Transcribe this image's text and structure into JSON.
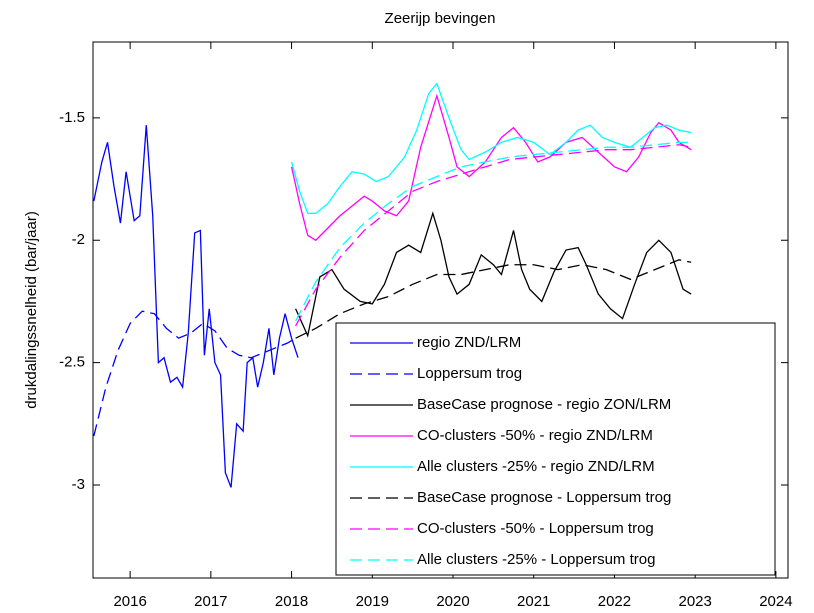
{
  "chart_data": {
    "type": "line",
    "title": "Zeerijp bevingen",
    "y_label": "drukdalingssnelheid (bar/jaar)",
    "xlim": [
      2015.54,
      2024.15
    ],
    "xticks": [
      2016,
      2017,
      2018,
      2019,
      2020,
      2021,
      2022,
      2023,
      2024
    ],
    "ylim": [
      -3.38,
      -1.19
    ],
    "yticks": [
      -3,
      -2.5,
      -2,
      -1.5
    ],
    "grid": false,
    "legend": "southeast",
    "series": [
      {
        "name": "regio ZND/LRM",
        "color": "#0000ff",
        "dashed": false,
        "x": [
          2015.55,
          2015.65,
          2015.72,
          2015.8,
          2015.88,
          2015.95,
          2016.05,
          2016.12,
          2016.2,
          2016.28,
          2016.35,
          2016.42,
          2016.5,
          2016.58,
          2016.65,
          2016.72,
          2016.8,
          2016.87,
          2016.92,
          2016.98,
          2017.05,
          2017.12,
          2017.18,
          2017.25,
          2017.32,
          2017.4,
          2017.45,
          2017.52,
          2017.58,
          2017.65,
          2017.72,
          2017.78,
          2017.85,
          2017.92,
          2018.0,
          2018.08
        ],
        "values": [
          -1.84,
          -1.68,
          -1.6,
          -1.78,
          -1.93,
          -1.72,
          -1.92,
          -1.9,
          -1.53,
          -1.9,
          -2.5,
          -2.48,
          -2.58,
          -2.56,
          -2.6,
          -2.38,
          -1.97,
          -1.96,
          -2.47,
          -2.28,
          -2.5,
          -2.55,
          -2.95,
          -3.01,
          -2.75,
          -2.78,
          -2.5,
          -2.48,
          -2.6,
          -2.5,
          -2.36,
          -2.55,
          -2.4,
          -2.3,
          -2.4,
          -2.48
        ]
      },
      {
        "name": "Loppersum trog",
        "color": "#0000ff",
        "dashed": true,
        "x": [
          2015.55,
          2015.7,
          2015.85,
          2016.0,
          2016.15,
          2016.3,
          2016.45,
          2016.6,
          2016.75,
          2016.9,
          2017.05,
          2017.2,
          2017.35,
          2017.5,
          2017.65,
          2017.8,
          2017.95,
          2018.05
        ],
        "values": [
          -2.8,
          -2.6,
          -2.45,
          -2.34,
          -2.29,
          -2.3,
          -2.36,
          -2.4,
          -2.38,
          -2.34,
          -2.37,
          -2.44,
          -2.47,
          -2.48,
          -2.46,
          -2.44,
          -2.42,
          -2.4
        ]
      },
      {
        "name": "BaseCase prognose - regio ZON/LRM",
        "color": "#000000",
        "dashed": false,
        "x": [
          2018.05,
          2018.2,
          2018.35,
          2018.5,
          2018.65,
          2018.85,
          2019.0,
          2019.15,
          2019.3,
          2019.45,
          2019.6,
          2019.75,
          2019.85,
          2019.95,
          2020.05,
          2020.2,
          2020.35,
          2020.5,
          2020.6,
          2020.75,
          2020.85,
          2020.95,
          2021.1,
          2021.25,
          2021.4,
          2021.55,
          2021.65,
          2021.8,
          2021.95,
          2022.1,
          2022.25,
          2022.4,
          2022.55,
          2022.7,
          2022.85,
          2022.95
        ],
        "values": [
          -2.28,
          -2.39,
          -2.15,
          -2.12,
          -2.2,
          -2.25,
          -2.26,
          -2.18,
          -2.05,
          -2.02,
          -2.05,
          -1.89,
          -2.0,
          -2.15,
          -2.22,
          -2.18,
          -2.06,
          -2.1,
          -2.14,
          -1.96,
          -2.12,
          -2.2,
          -2.25,
          -2.13,
          -2.04,
          -2.03,
          -2.1,
          -2.22,
          -2.28,
          -2.32,
          -2.18,
          -2.05,
          -2.0,
          -2.05,
          -2.2,
          -2.22
        ]
      },
      {
        "name": "CO-clusters -50% - regio ZND/LRM",
        "color": "#ff00ff",
        "dashed": false,
        "x": [
          2018.0,
          2018.1,
          2018.2,
          2018.3,
          2018.45,
          2018.6,
          2018.75,
          2018.9,
          2019.0,
          2019.15,
          2019.3,
          2019.45,
          2019.6,
          2019.8,
          2019.95,
          2020.05,
          2020.2,
          2020.4,
          2020.6,
          2020.75,
          2020.9,
          2021.05,
          2021.2,
          2021.4,
          2021.6,
          2021.8,
          2022.0,
          2022.15,
          2022.3,
          2022.45,
          2022.55,
          2022.7,
          2022.8,
          2022.95
        ],
        "values": [
          -1.7,
          -1.85,
          -1.98,
          -2.0,
          -1.95,
          -1.9,
          -1.86,
          -1.82,
          -1.84,
          -1.88,
          -1.9,
          -1.84,
          -1.62,
          -1.41,
          -1.58,
          -1.7,
          -1.74,
          -1.68,
          -1.58,
          -1.54,
          -1.6,
          -1.68,
          -1.66,
          -1.6,
          -1.58,
          -1.64,
          -1.7,
          -1.72,
          -1.66,
          -1.56,
          -1.52,
          -1.55,
          -1.6,
          -1.63
        ]
      },
      {
        "name": "Alle clusters -25% - regio ZND/LRM",
        "color": "#00ffff",
        "dashed": false,
        "x": [
          2018.0,
          2018.1,
          2018.2,
          2018.3,
          2018.45,
          2018.6,
          2018.75,
          2018.9,
          2019.05,
          2019.2,
          2019.4,
          2019.55,
          2019.7,
          2019.8,
          2019.95,
          2020.1,
          2020.2,
          2020.4,
          2020.6,
          2020.8,
          2021.0,
          2021.2,
          2021.4,
          2021.55,
          2021.7,
          2021.85,
          2022.0,
          2022.2,
          2022.35,
          2022.5,
          2022.65,
          2022.8,
          2022.95
        ],
        "values": [
          -1.68,
          -1.8,
          -1.89,
          -1.89,
          -1.85,
          -1.78,
          -1.72,
          -1.73,
          -1.76,
          -1.74,
          -1.66,
          -1.55,
          -1.4,
          -1.36,
          -1.5,
          -1.63,
          -1.67,
          -1.64,
          -1.6,
          -1.58,
          -1.6,
          -1.65,
          -1.6,
          -1.55,
          -1.53,
          -1.58,
          -1.6,
          -1.62,
          -1.58,
          -1.54,
          -1.53,
          -1.55,
          -1.56
        ]
      },
      {
        "name": "BaseCase prognose - Loppersum trog",
        "color": "#000000",
        "dashed": true,
        "x": [
          2018.05,
          2018.3,
          2018.6,
          2018.9,
          2019.2,
          2019.5,
          2019.8,
          2020.1,
          2020.4,
          2020.7,
          2021.0,
          2021.3,
          2021.6,
          2021.9,
          2022.2,
          2022.5,
          2022.8,
          2022.95
        ],
        "values": [
          -2.4,
          -2.36,
          -2.3,
          -2.26,
          -2.23,
          -2.18,
          -2.14,
          -2.14,
          -2.12,
          -2.1,
          -2.1,
          -2.12,
          -2.1,
          -2.12,
          -2.16,
          -2.12,
          -2.08,
          -2.09
        ]
      },
      {
        "name": "CO-clusters -50% - Loppersum trog",
        "color": "#ff00ff",
        "dashed": true,
        "x": [
          2018.05,
          2018.3,
          2018.6,
          2018.9,
          2019.2,
          2019.5,
          2019.8,
          2020.1,
          2020.4,
          2020.7,
          2021.0,
          2021.3,
          2021.6,
          2021.9,
          2022.2,
          2022.5,
          2022.8,
          2022.95
        ],
        "values": [
          -2.35,
          -2.2,
          -2.07,
          -1.96,
          -1.88,
          -1.8,
          -1.76,
          -1.73,
          -1.7,
          -1.67,
          -1.66,
          -1.65,
          -1.64,
          -1.63,
          -1.63,
          -1.62,
          -1.61,
          -1.62
        ]
      },
      {
        "name": "Alle clusters -25% - Loppersum trog",
        "color": "#00ffff",
        "dashed": true,
        "x": [
          2018.05,
          2018.3,
          2018.6,
          2018.9,
          2019.2,
          2019.5,
          2019.8,
          2020.1,
          2020.4,
          2020.7,
          2021.0,
          2021.3,
          2021.6,
          2021.9,
          2022.2,
          2022.5,
          2022.8,
          2022.95
        ],
        "values": [
          -2.33,
          -2.17,
          -2.03,
          -1.93,
          -1.85,
          -1.78,
          -1.74,
          -1.7,
          -1.68,
          -1.66,
          -1.65,
          -1.64,
          -1.63,
          -1.62,
          -1.62,
          -1.61,
          -1.6,
          -1.6
        ]
      }
    ]
  }
}
